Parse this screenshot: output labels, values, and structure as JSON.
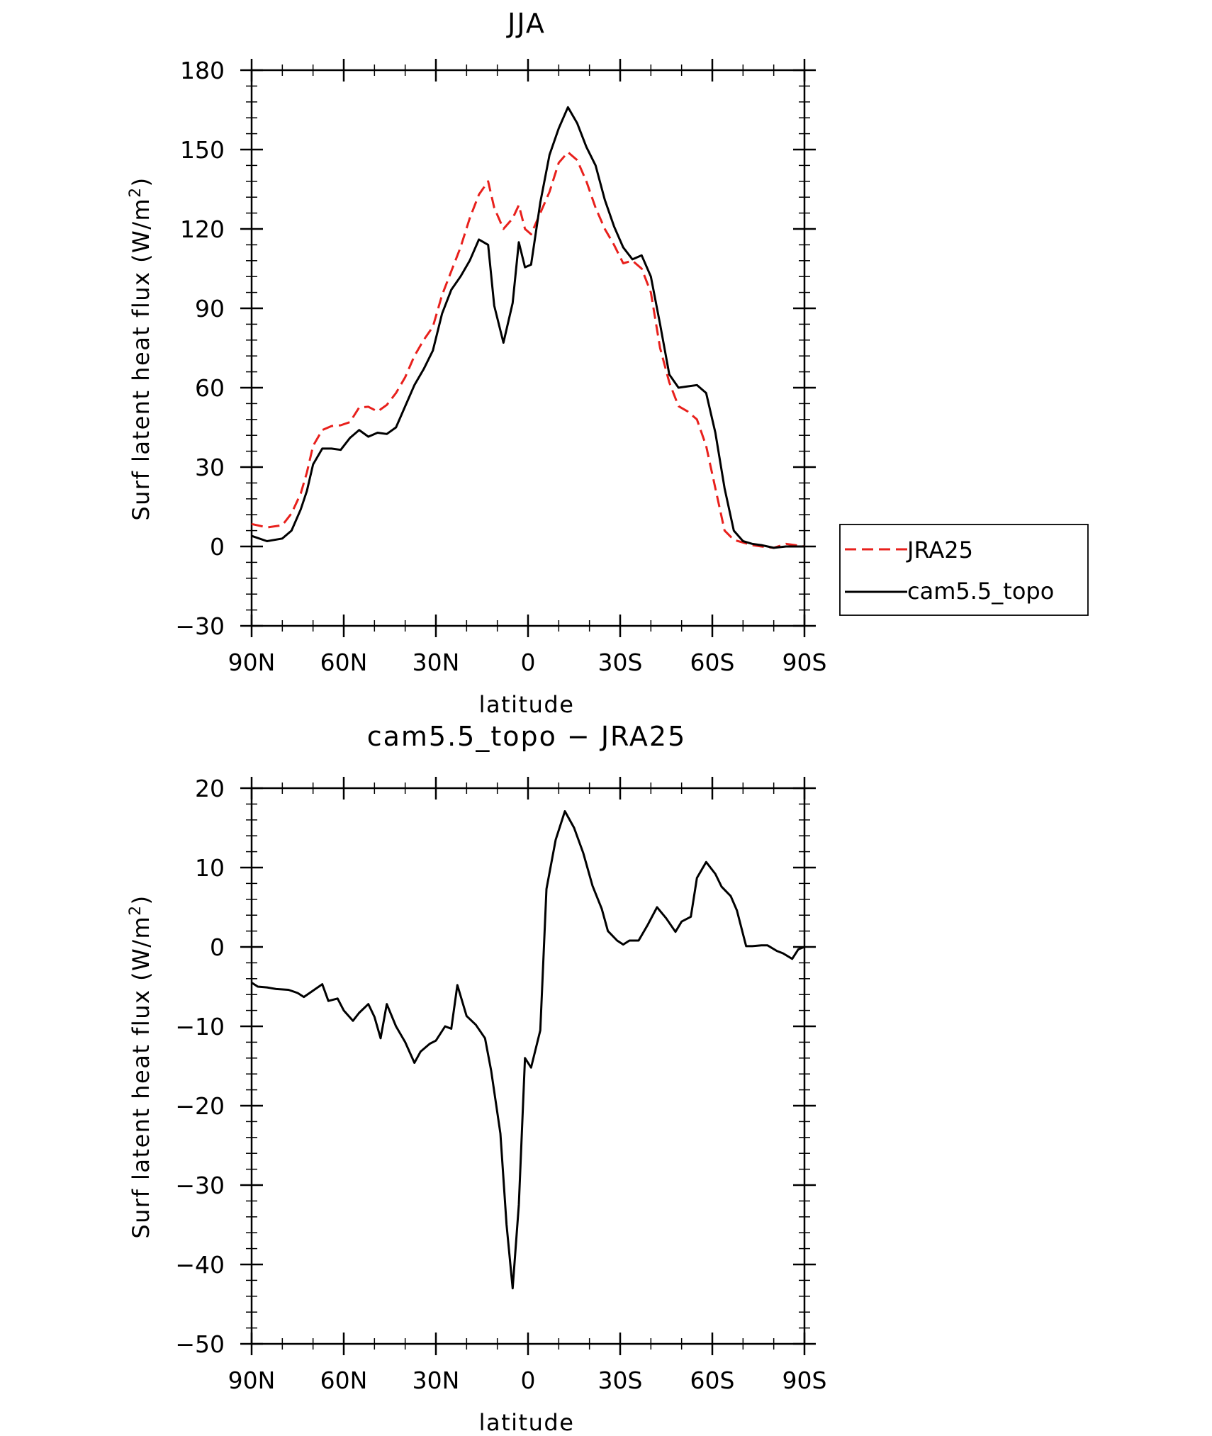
{
  "chart_data": [
    {
      "type": "line",
      "title": "JJA",
      "xlabel": "latitude",
      "ylabel": "Surf latent heat flux (W/m²)",
      "ylabel_prefix": "Surf latent heat flux (W/m",
      "ylabel_sup": "2",
      "ylabel_suffix": ")",
      "xlim": [
        90,
        -90
      ],
      "ylim": [
        -30,
        180
      ],
      "x_ticks": [
        90,
        60,
        30,
        0,
        -30,
        -60,
        -90
      ],
      "x_tick_labels": [
        "90N",
        "60N",
        "30N",
        "0",
        "30S",
        "60S",
        "90S"
      ],
      "y_ticks": [
        -30,
        0,
        30,
        60,
        90,
        120,
        150,
        180
      ],
      "y_tick_labels": [
        "−30",
        "0",
        "30",
        "60",
        "90",
        "120",
        "150",
        "180"
      ],
      "legend_position": "outside-right",
      "series": [
        {
          "name": "JRA25",
          "color": "#e8201c",
          "style": "dashed",
          "x": [
            90,
            85,
            80,
            77,
            74,
            72,
            70,
            67,
            64,
            61,
            58,
            55,
            52,
            49,
            46,
            43,
            40,
            37,
            34,
            31,
            28,
            25,
            22,
            19,
            16,
            13,
            11,
            8,
            5,
            3,
            1,
            -1,
            -4,
            -7,
            -10,
            -13,
            -16,
            -19,
            -22,
            -25,
            -28,
            -31,
            -34,
            -37,
            -40,
            -43,
            -46,
            -49,
            -52,
            -55,
            -58,
            -61,
            -64,
            -67,
            -70,
            -73,
            -76,
            -80,
            -84,
            -87,
            -90
          ],
          "y": [
            8.5,
            7.2,
            8.0,
            12.5,
            20.0,
            28.0,
            38.0,
            44.0,
            45.5,
            45.8,
            47.0,
            52.5,
            52.8,
            51.0,
            53.5,
            58.0,
            64.0,
            72.0,
            78.0,
            83.0,
            95.0,
            104.0,
            113.0,
            124.0,
            133.0,
            138.0,
            128.0,
            120.0,
            124.0,
            129.0,
            120.0,
            118.0,
            126.0,
            134.0,
            145.0,
            149.0,
            146.0,
            138.0,
            128.0,
            120.0,
            114.0,
            107.0,
            108.0,
            105.0,
            96.0,
            75.0,
            62.0,
            53.0,
            51.0,
            48.0,
            38.0,
            22.0,
            6.0,
            2.5,
            1.5,
            0.5,
            0.0,
            -0.5,
            1.0,
            0.5,
            0.0
          ]
        },
        {
          "name": "cam5.5_topo",
          "color": "#000000",
          "style": "solid",
          "x": [
            90,
            85,
            80,
            77,
            74,
            72,
            70,
            67,
            64,
            61,
            58,
            55,
            52,
            49,
            46,
            43,
            40,
            37,
            34,
            31,
            28,
            25,
            22,
            19,
            16,
            13,
            11,
            8,
            5,
            3,
            1,
            -1,
            -4,
            -7,
            -10,
            -13,
            -16,
            -19,
            -22,
            -25,
            -28,
            -31,
            -34,
            -37,
            -40,
            -43,
            -46,
            -49,
            -52,
            -55,
            -58,
            -61,
            -64,
            -67,
            -70,
            -73,
            -76,
            -80,
            -84,
            -87,
            -90
          ],
          "y": [
            4.0,
            2.0,
            3.0,
            6.0,
            14.0,
            21.0,
            31.0,
            37.0,
            37.0,
            36.5,
            41.0,
            44.0,
            41.5,
            43.0,
            42.5,
            45.0,
            53.0,
            61.0,
            67.0,
            74.0,
            88.0,
            97.0,
            102.0,
            108.0,
            116.0,
            114.0,
            91.0,
            77.0,
            92.0,
            115.0,
            105.5,
            106.5,
            130.0,
            148.0,
            158.0,
            166.0,
            160.0,
            151.0,
            144.0,
            131.0,
            121.0,
            113.0,
            108.5,
            110.0,
            102.0,
            84.0,
            65.0,
            60.0,
            60.5,
            61.0,
            58.0,
            43.0,
            22.0,
            6.0,
            2.0,
            1.0,
            0.5,
            -0.5,
            0.0,
            0.0,
            0.0
          ]
        }
      ]
    },
    {
      "type": "line",
      "title": "cam5.5_topo − JRA25",
      "xlabel": "latitude",
      "ylabel": "Surf latent heat flux (W/m²)",
      "ylabel_prefix": "Surf latent heat flux (W/m",
      "ylabel_sup": "2",
      "ylabel_suffix": ")",
      "xlim": [
        90,
        -90
      ],
      "ylim": [
        -50,
        20
      ],
      "x_ticks": [
        90,
        60,
        30,
        0,
        -30,
        -60,
        -90
      ],
      "x_tick_labels": [
        "90N",
        "60N",
        "30N",
        "0",
        "30S",
        "60S",
        "90S"
      ],
      "y_ticks": [
        -50,
        -40,
        -30,
        -20,
        -10,
        0,
        10,
        20
      ],
      "y_tick_labels": [
        "−50",
        "−40",
        "−30",
        "−20",
        "−10",
        "0",
        "10",
        "20"
      ],
      "series": [
        {
          "name": "cam5.5_topo − JRA25",
          "color": "#000000",
          "style": "solid",
          "x": [
            90,
            88,
            85,
            82,
            78,
            75,
            73,
            70,
            67,
            65,
            62,
            60,
            57,
            55,
            52,
            50,
            48,
            46,
            43,
            40,
            37,
            35,
            32,
            30,
            27,
            25,
            23,
            20,
            17,
            14,
            12,
            9,
            7,
            5,
            3,
            1,
            -1,
            -4,
            -6,
            -9,
            -12,
            -15,
            -18,
            -21,
            -24,
            -26,
            -29,
            -31,
            -33,
            -36,
            -39,
            -42,
            -45,
            -48,
            -50,
            -53,
            -55,
            -58,
            -61,
            -63,
            -66,
            -68,
            -71,
            -73,
            -76,
            -78,
            -81,
            -83,
            -86,
            -88,
            -90
          ],
          "y": [
            -4.5,
            -5.0,
            -5.1,
            -5.3,
            -5.4,
            -5.8,
            -6.3,
            -5.5,
            -4.7,
            -6.8,
            -6.5,
            -8.0,
            -9.3,
            -8.3,
            -7.2,
            -8.8,
            -11.5,
            -7.2,
            -10.0,
            -12.0,
            -14.6,
            -13.2,
            -12.2,
            -11.8,
            -10.0,
            -10.3,
            -4.8,
            -8.7,
            -9.8,
            -11.5,
            -15.6,
            -23.5,
            -35.0,
            -43.0,
            -32.5,
            -14.0,
            -15.2,
            -10.5,
            7.3,
            13.5,
            17.1,
            15.0,
            11.8,
            7.7,
            4.8,
            2.0,
            0.8,
            0.3,
            0.8,
            0.8,
            2.8,
            5.0,
            3.6,
            1.9,
            3.2,
            3.8,
            8.7,
            10.7,
            9.2,
            7.6,
            6.4,
            4.6,
            0.1,
            0.1,
            0.2,
            0.2,
            -0.5,
            -0.8,
            -1.5,
            -0.3,
            0.0
          ]
        }
      ]
    }
  ]
}
